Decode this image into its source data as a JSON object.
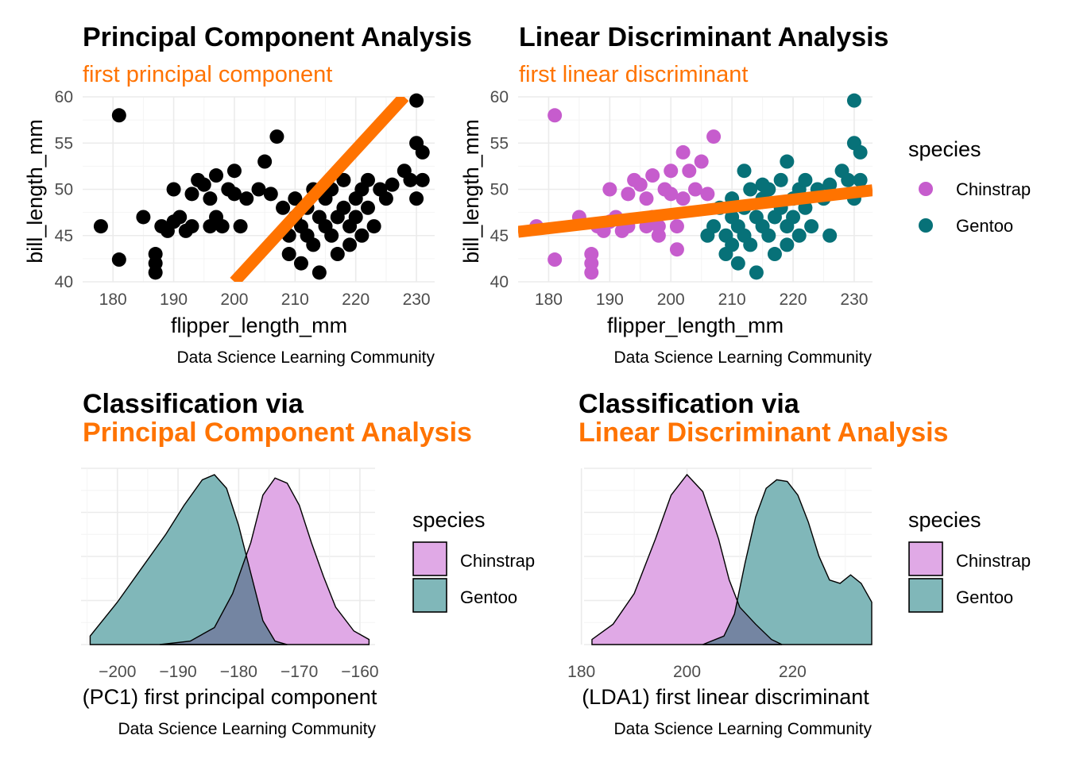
{
  "panels": {
    "pca_scatter": {
      "title": "Principal Component Analysis",
      "subtitle": "first principal component",
      "xlabel": "flipper_length_mm",
      "ylabel": "bill_length_mm",
      "caption": "Data Science Learning Community"
    },
    "lda_scatter": {
      "title": "Linear Discriminant Analysis",
      "subtitle": "first linear discriminant",
      "xlabel": "flipper_length_mm",
      "ylabel": "bill_length_mm",
      "caption": "Data Science Learning Community",
      "legend_title": "species"
    },
    "pca_density": {
      "title_line1": "Classification via",
      "title_line2": "Principal Component Analysis",
      "xlabel": "(PC1) first principal component",
      "caption": "Data Science Learning Community",
      "legend_title": "species"
    },
    "lda_density": {
      "title_line1": "Classification via",
      "title_line2": "Linear Discriminant Analysis",
      "xlabel": "(LDA1) first linear discriminant",
      "caption": "Data Science Learning Community",
      "legend_title": "species"
    }
  },
  "species": [
    "Chinstrap",
    "Gentoo"
  ],
  "colors": {
    "accent": "#ff7300",
    "chinstrap_point": "#c65ccd",
    "gentoo_point": "#077178",
    "chinstrap_fill": "#e0a9e6",
    "gentoo_fill": "#80b7b9",
    "overlap_fill": "#7485a2",
    "black_point": "#000000"
  },
  "chart_data": [
    {
      "type": "scatter",
      "panel": "pca_scatter",
      "xlim": [
        175,
        233
      ],
      "ylim": [
        40,
        60
      ],
      "xticks": [
        180,
        190,
        200,
        210,
        220,
        230
      ],
      "yticks": [
        40,
        45,
        50,
        55,
        60
      ],
      "grid": true,
      "line": {
        "label": "first principal component",
        "x": [
          200,
          228
        ],
        "y": [
          40,
          60
        ]
      },
      "series": [
        {
          "color": "black",
          "points": [
            [
              178,
              46
            ],
            [
              181,
              58
            ],
            [
              181,
              42.4
            ],
            [
              185,
              47
            ],
            [
              187,
              42
            ],
            [
              187,
              41
            ],
            [
              187,
              43
            ],
            [
              188,
              46
            ],
            [
              189,
              45.5
            ],
            [
              190,
              50
            ],
            [
              190,
              46.5
            ],
            [
              191,
              47
            ],
            [
              192,
              45.5
            ],
            [
              193,
              49.5
            ],
            [
              193,
              46
            ],
            [
              194,
              51
            ],
            [
              195,
              50.5
            ],
            [
              196,
              49
            ],
            [
              196,
              46
            ],
            [
              197,
              51.5
            ],
            [
              197,
              47
            ],
            [
              198,
              46
            ],
            [
              199,
              50
            ],
            [
              200,
              49.5
            ],
            [
              200,
              52
            ],
            [
              201,
              46
            ],
            [
              202,
              49
            ],
            [
              204,
              50
            ],
            [
              205,
              53
            ],
            [
              206,
              49.5
            ],
            [
              207,
              55.7
            ],
            [
              208,
              48
            ],
            [
              209,
              45
            ],
            [
              209,
              43
            ],
            [
              210,
              47
            ],
            [
              210,
              49
            ],
            [
              211,
              42
            ],
            [
              211,
              46
            ],
            [
              212,
              45
            ],
            [
              212,
              48
            ],
            [
              213,
              50
            ],
            [
              213,
              44
            ],
            [
              214,
              47
            ],
            [
              214,
              41
            ],
            [
              215,
              46
            ],
            [
              215,
              49
            ],
            [
              216,
              45
            ],
            [
              216,
              50
            ],
            [
              217,
              47
            ],
            [
              217,
              43
            ],
            [
              218,
              48
            ],
            [
              218,
              51
            ],
            [
              219,
              46
            ],
            [
              219,
              44
            ],
            [
              220,
              49
            ],
            [
              220,
              47
            ],
            [
              221,
              50
            ],
            [
              221,
              45
            ],
            [
              222,
              51
            ],
            [
              222,
              48
            ],
            [
              223,
              46
            ],
            [
              224,
              50
            ],
            [
              225,
              49
            ],
            [
              226,
              50.5
            ],
            [
              228,
              52
            ],
            [
              229,
              51
            ],
            [
              230,
              49
            ],
            [
              230,
              59.6
            ],
            [
              230,
              55
            ],
            [
              231,
              54
            ],
            [
              231,
              51
            ]
          ]
        }
      ]
    },
    {
      "type": "scatter",
      "panel": "lda_scatter",
      "xlim": [
        175,
        233
      ],
      "ylim": [
        40,
        60
      ],
      "xticks": [
        180,
        190,
        200,
        210,
        220,
        230
      ],
      "yticks": [
        40,
        45,
        50,
        55,
        60
      ],
      "grid": true,
      "legend_position": "right",
      "line": {
        "label": "first linear discriminant",
        "x": [
          175,
          233
        ],
        "y": [
          45.4,
          49.9
        ]
      },
      "series": [
        {
          "name": "Chinstrap",
          "points": [
            [
              178,
              46
            ],
            [
              181,
              58
            ],
            [
              181,
              42.4
            ],
            [
              185,
              47
            ],
            [
              187,
              42
            ],
            [
              187,
              41
            ],
            [
              187,
              43
            ],
            [
              188,
              46
            ],
            [
              189,
              45.5
            ],
            [
              190,
              50
            ],
            [
              190,
              46.5
            ],
            [
              191,
              47
            ],
            [
              192,
              45.5
            ],
            [
              193,
              49.5
            ],
            [
              193,
              46
            ],
            [
              194,
              51
            ],
            [
              195,
              50.5
            ],
            [
              196,
              49
            ],
            [
              196,
              46
            ],
            [
              197,
              51.5
            ],
            [
              197,
              47
            ],
            [
              198,
              46
            ],
            [
              199,
              50
            ],
            [
              200,
              49.5
            ],
            [
              200,
              52
            ],
            [
              201,
              46
            ],
            [
              202,
              49
            ],
            [
              202,
              54
            ],
            [
              203,
              52
            ],
            [
              204,
              50
            ],
            [
              205,
              53
            ],
            [
              206,
              49.5
            ],
            [
              207,
              55.7
            ],
            [
              201,
              43.5
            ],
            [
              198,
              45
            ]
          ]
        },
        {
          "name": "Gentoo",
          "points": [
            [
              208,
              48
            ],
            [
              209,
              45
            ],
            [
              209,
              43
            ],
            [
              210,
              47
            ],
            [
              210,
              49
            ],
            [
              211,
              42
            ],
            [
              211,
              46
            ],
            [
              212,
              45
            ],
            [
              212,
              48
            ],
            [
              213,
              50
            ],
            [
              213,
              44
            ],
            [
              214,
              47
            ],
            [
              214,
              41
            ],
            [
              215,
              46
            ],
            [
              215,
              49
            ],
            [
              216,
              45
            ],
            [
              216,
              50
            ],
            [
              217,
              47
            ],
            [
              217,
              43
            ],
            [
              218,
              48
            ],
            [
              218,
              51
            ],
            [
              219,
              46
            ],
            [
              219,
              44
            ],
            [
              220,
              49
            ],
            [
              220,
              47
            ],
            [
              221,
              50
            ],
            [
              221,
              45
            ],
            [
              222,
              51
            ],
            [
              222,
              48
            ],
            [
              223,
              46
            ],
            [
              224,
              50
            ],
            [
              225,
              49
            ],
            [
              226,
              50.5
            ],
            [
              228,
              52
            ],
            [
              229,
              51
            ],
            [
              230,
              49
            ],
            [
              230,
              59.6
            ],
            [
              230,
              55
            ],
            [
              231,
              54
            ],
            [
              231,
              51
            ],
            [
              206,
              45
            ],
            [
              207,
              46
            ],
            [
              212,
              52
            ],
            [
              215,
              50.5
            ],
            [
              219,
              53
            ],
            [
              226,
              45
            ],
            [
              210,
              44
            ]
          ]
        }
      ]
    },
    {
      "type": "area",
      "panel": "pca_density",
      "xlim": [
        -206,
        -157.5
      ],
      "xticks": [
        -200,
        -190,
        -180,
        -170,
        -160
      ],
      "grid": true,
      "legend_position": "right",
      "series": [
        {
          "name": "Chinstrap",
          "x": [
            -193,
            -188,
            -184,
            -181,
            -178,
            -176,
            -174,
            -172,
            -170,
            -168,
            -166,
            -164,
            -161,
            -158.5
          ],
          "density": [
            0,
            0.02,
            0.1,
            0.3,
            0.6,
            0.88,
            0.98,
            0.95,
            0.82,
            0.6,
            0.4,
            0.22,
            0.08,
            0.03
          ]
        },
        {
          "name": "Gentoo",
          "x": [
            -204.5,
            -200,
            -196,
            -192,
            -189,
            -186,
            -184,
            -182,
            -180,
            -178,
            -176,
            -174,
            -172
          ],
          "density": [
            0.05,
            0.25,
            0.45,
            0.65,
            0.82,
            0.97,
            1.0,
            0.92,
            0.7,
            0.42,
            0.14,
            0.02,
            0
          ]
        }
      ]
    },
    {
      "type": "area",
      "panel": "lda_density",
      "xlim": [
        180.5,
        235
      ],
      "xticks": [
        180,
        200,
        220
      ],
      "grid": true,
      "legend_position": "right",
      "series": [
        {
          "name": "Chinstrap",
          "x": [
            182,
            186,
            190,
            194,
            197,
            200,
            203,
            206,
            208,
            210,
            213,
            216,
            218
          ],
          "density": [
            0.03,
            0.12,
            0.3,
            0.62,
            0.88,
            1.0,
            0.9,
            0.62,
            0.38,
            0.22,
            0.12,
            0.03,
            0
          ]
        },
        {
          "name": "Gentoo",
          "x": [
            203,
            207,
            209,
            211,
            213,
            215,
            217,
            219,
            221,
            223,
            225,
            227,
            229,
            231,
            233,
            235
          ],
          "density": [
            0,
            0.05,
            0.18,
            0.48,
            0.75,
            0.92,
            0.97,
            0.96,
            0.88,
            0.72,
            0.52,
            0.38,
            0.36,
            0.41,
            0.36,
            0.25
          ]
        }
      ]
    }
  ]
}
